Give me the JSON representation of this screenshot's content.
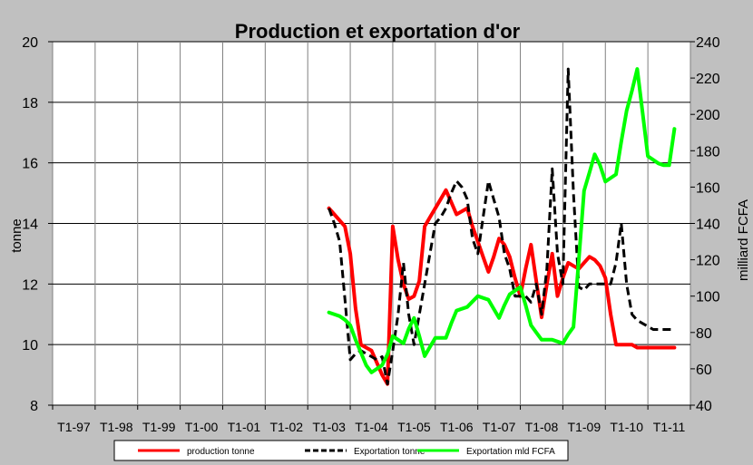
{
  "chart_data": {
    "type": "line",
    "title": "Production et exportation d'or",
    "ylabel": "tonne",
    "y2label": "milliard FCFA",
    "ylim": [
      8,
      20
    ],
    "y2lim": [
      40,
      240
    ],
    "yticks": [
      "8",
      "10",
      "12",
      "14",
      "16",
      "18",
      "20"
    ],
    "y2ticks": [
      "40",
      "60",
      "80",
      "100",
      "120",
      "140",
      "160",
      "180",
      "200",
      "220",
      "240"
    ],
    "categories": [
      "T1-97",
      "T1-98",
      "T1-99",
      "T1-00",
      "T1-01",
      "T1-02",
      "T1-03",
      "T1-04",
      "T1-05",
      "T1-06",
      "T1-07",
      "T1-08",
      "T1-09",
      "T1-10",
      "T1-11"
    ],
    "grid": true,
    "legend_position": "bottom",
    "series": [
      {
        "name": "production tonne",
        "axis": "left",
        "color": "#ff0000",
        "style": "solid",
        "x": [
          24,
          24.5,
          25,
          25.5,
          26,
          26.5,
          27,
          27.5,
          28,
          28.5,
          29,
          29.5,
          30,
          30.5,
          31,
          31.5,
          32,
          32.5,
          33,
          33.5,
          34,
          34.5,
          35,
          35.5,
          36,
          36.5,
          37,
          37.5,
          38,
          38.5,
          39,
          39.5,
          40,
          40.5,
          41,
          41.5,
          42,
          42.5,
          43,
          43.5,
          44,
          44.5,
          45,
          45.5,
          46,
          46.5,
          47,
          47.5,
          48,
          48.5,
          49,
          49.5,
          50,
          50.5,
          51,
          51.5,
          52,
          52.5,
          53,
          53.5,
          54,
          54.5,
          55,
          55.5,
          56,
          56.5
        ],
        "values": [
          14.5,
          14.3,
          14.1,
          13.9,
          13.0,
          11.2,
          10.0,
          9.9,
          9.8,
          9.4,
          9.0,
          8.7,
          13.9,
          12.8,
          12.0,
          11.5,
          11.6,
          12.1,
          13.9,
          14.2,
          14.5,
          14.8,
          15.1,
          14.7,
          14.3,
          14.4,
          14.5,
          13.9,
          13.4,
          12.9,
          12.4,
          12.9,
          13.5,
          13.3,
          12.9,
          12.2,
          11.6,
          12.5,
          13.3,
          12.1,
          10.9,
          12.0,
          13.0,
          11.6,
          12.2,
          12.7,
          12.6,
          12.5,
          12.7,
          12.9,
          12.8,
          12.6,
          12.2,
          11.0,
          10.0,
          10.0,
          10.0,
          10.0,
          9.9,
          9.9,
          9.9,
          9.9,
          9.9,
          9.9,
          9.9,
          9.9
        ]
      },
      {
        "name": "Exportation tonne",
        "axis": "left",
        "color": "#000000",
        "style": "dashed",
        "x": [
          24,
          24.5,
          25,
          25.5,
          26,
          26.5,
          27,
          27.5,
          28,
          28.5,
          29,
          29.5,
          30,
          30.5,
          31,
          31.5,
          32,
          32.5,
          33,
          33.5,
          34,
          34.5,
          35,
          35.5,
          36,
          36.5,
          37,
          37.5,
          38,
          38.5,
          39,
          39.5,
          40,
          40.5,
          41,
          41.5,
          42,
          42.5,
          43,
          43.5,
          44,
          44.5,
          45,
          45.5,
          46,
          46.5,
          47,
          47.5,
          48,
          48.5,
          49,
          49.5,
          50,
          50.5,
          51,
          51.5,
          52,
          52.5,
          53,
          53.5,
          54,
          54.5,
          55,
          55.5,
          56,
          56.5
        ],
        "values": [
          14.5,
          14.0,
          13.4,
          11.5,
          9.5,
          9.7,
          9.8,
          9.7,
          9.6,
          9.5,
          9.6,
          8.7,
          9.8,
          11.0,
          12.7,
          11.0,
          10.0,
          11.0,
          12.0,
          13.0,
          14.0,
          14.2,
          14.5,
          15.0,
          15.4,
          15.2,
          14.8,
          13.5,
          13.0,
          14.2,
          15.4,
          14.8,
          14.2,
          13.0,
          12.5,
          11.6,
          11.6,
          11.6,
          11.4,
          12.0,
          11.0,
          12.5,
          15.8,
          13.0,
          12.0,
          19.1,
          15.0,
          11.9,
          11.8,
          12.0,
          12.0,
          12.0,
          12.0,
          12.0,
          12.7,
          14.0,
          12.0,
          11.0,
          10.8,
          10.7,
          10.6,
          10.5,
          10.5,
          10.5,
          10.5,
          10.5
        ]
      },
      {
        "name": "Exportation mld FCFA",
        "axis": "right",
        "color": "#00ff00",
        "style": "solid",
        "x": [
          24,
          24.5,
          25,
          25.5,
          26,
          26.5,
          27,
          27.5,
          28,
          28.5,
          29,
          29.5,
          30,
          30.5,
          31,
          31.5,
          32,
          32.5,
          33,
          33.5,
          34,
          34.5,
          35,
          35.5,
          36,
          36.5,
          37,
          37.5,
          38,
          38.5,
          39,
          39.5,
          40,
          40.5,
          41,
          41.5,
          42,
          42.5,
          43,
          43.5,
          44,
          44.5,
          45,
          45.5,
          46,
          46.5,
          47,
          47.5,
          48,
          48.5,
          49,
          49.5,
          50,
          50.5,
          51,
          51.5,
          52,
          52.5,
          53,
          53.5,
          54,
          54.5,
          55,
          55.5,
          56,
          56.5
        ],
        "values": [
          91,
          90,
          89,
          87,
          84,
          76,
          69,
          62,
          58,
          60,
          62,
          68,
          78,
          76,
          74,
          82,
          88,
          78,
          67,
          72,
          77,
          77,
          77,
          85,
          92,
          93,
          94,
          97,
          100,
          99,
          98,
          93,
          88,
          95,
          101,
          103,
          105,
          95,
          84,
          80,
          76,
          76,
          76,
          75,
          74,
          79,
          83,
          120,
          158,
          168,
          178,
          172,
          163,
          165,
          167,
          185,
          202,
          213,
          225,
          201,
          177,
          175,
          173,
          172,
          172,
          192
        ]
      }
    ]
  }
}
